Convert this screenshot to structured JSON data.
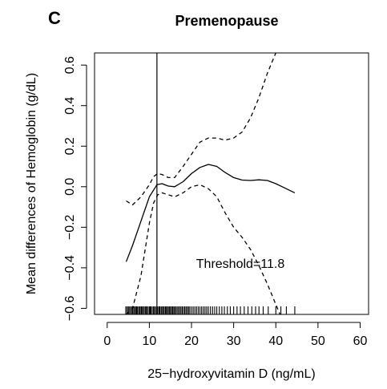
{
  "panel_label": "C",
  "chart_data": {
    "type": "line",
    "title": "Premenopause",
    "xlabel": "25−hydroxyvitamin D (ng/mL)",
    "ylabel": "Mean differences of Hemoglobin (g/dL)",
    "xlim": [
      -3,
      62
    ],
    "ylim": [
      -0.63,
      0.66
    ],
    "xticks": [
      0,
      10,
      20,
      30,
      40,
      50,
      60
    ],
    "xtick_labels": [
      "0",
      "10",
      "20",
      "30",
      "40",
      "50",
      "60"
    ],
    "yticks": [
      -0.6,
      -0.4,
      -0.2,
      0.0,
      0.2,
      0.4,
      0.6
    ],
    "ytick_labels": [
      "−0.6",
      "−0.4",
      "−0.2",
      "0.0",
      "0.2",
      "0.4",
      "0.6"
    ],
    "grid": false,
    "threshold": 11.8,
    "annotation": "Threshold=11.8",
    "series": [
      {
        "role": "estimate",
        "line_style": "solid",
        "x": [
          4.5,
          6,
          8,
          10,
          11.8,
          13,
          14.5,
          16,
          18,
          20,
          22,
          24,
          26,
          28,
          30,
          32,
          34,
          36,
          38,
          40,
          42,
          44.5
        ],
        "y": [
          -0.37,
          -0.29,
          -0.17,
          -0.05,
          0.01,
          0.015,
          0.003,
          0.0,
          0.025,
          0.065,
          0.095,
          0.11,
          0.1,
          0.07,
          0.045,
          0.033,
          0.031,
          0.034,
          0.031,
          0.015,
          -0.005,
          -0.03
        ]
      },
      {
        "role": "upper-ci",
        "line_style": "dashed",
        "x": [
          4.5,
          6,
          8,
          10,
          11,
          12,
          13,
          14.5,
          16,
          18,
          20,
          22,
          24,
          26,
          28,
          30,
          32,
          34,
          36,
          38,
          40,
          41.5
        ],
        "y": [
          -0.07,
          -0.09,
          -0.05,
          0.01,
          0.05,
          0.065,
          0.06,
          0.045,
          0.045,
          0.1,
          0.16,
          0.22,
          0.24,
          0.24,
          0.23,
          0.24,
          0.27,
          0.34,
          0.44,
          0.56,
          0.66,
          0.67
        ]
      },
      {
        "role": "lower-ci",
        "line_style": "dashed",
        "x": [
          4.5,
          6,
          8,
          10,
          11,
          12,
          13,
          14.5,
          16,
          18,
          20,
          22,
          24,
          26,
          28,
          30,
          32,
          34,
          36,
          38,
          40,
          41
        ],
        "y": [
          -0.63,
          -0.6,
          -0.44,
          -0.18,
          -0.08,
          -0.04,
          -0.03,
          -0.04,
          -0.05,
          -0.03,
          0.0,
          0.01,
          -0.01,
          -0.05,
          -0.13,
          -0.2,
          -0.25,
          -0.31,
          -0.39,
          -0.48,
          -0.58,
          -0.63
        ]
      }
    ],
    "rug_x": [
      4.4,
      4.7,
      5.0,
      5.2,
      5.5,
      5.8,
      6.0,
      6.3,
      6.5,
      6.8,
      7.0,
      7.2,
      7.5,
      7.7,
      8.0,
      8.2,
      8.4,
      8.7,
      9.0,
      9.2,
      9.4,
      9.7,
      10.0,
      10.2,
      10.4,
      10.7,
      11.0,
      11.2,
      11.5,
      11.8,
      12.0,
      12.3,
      12.5,
      12.8,
      13.0,
      13.3,
      13.5,
      13.8,
      14.0,
      14.3,
      14.5,
      14.8,
      15.0,
      15.3,
      15.5,
      15.8,
      16.0,
      16.3,
      16.6,
      16.9,
      17.2,
      17.5,
      17.8,
      18.1,
      18.4,
      18.7,
      19.0,
      19.3,
      19.6,
      20.0,
      20.4,
      20.8,
      21.2,
      21.6,
      22.0,
      22.4,
      22.8,
      23.2,
      23.6,
      24.0,
      24.5,
      25.0,
      25.5,
      26.0,
      26.6,
      27.2,
      27.8,
      28.5,
      29.2,
      30.0,
      30.8,
      31.6,
      32.5,
      33.4,
      34.3,
      35.2,
      36.0,
      37.0,
      38.2,
      40.0,
      41.2,
      42.5,
      44.5
    ]
  }
}
